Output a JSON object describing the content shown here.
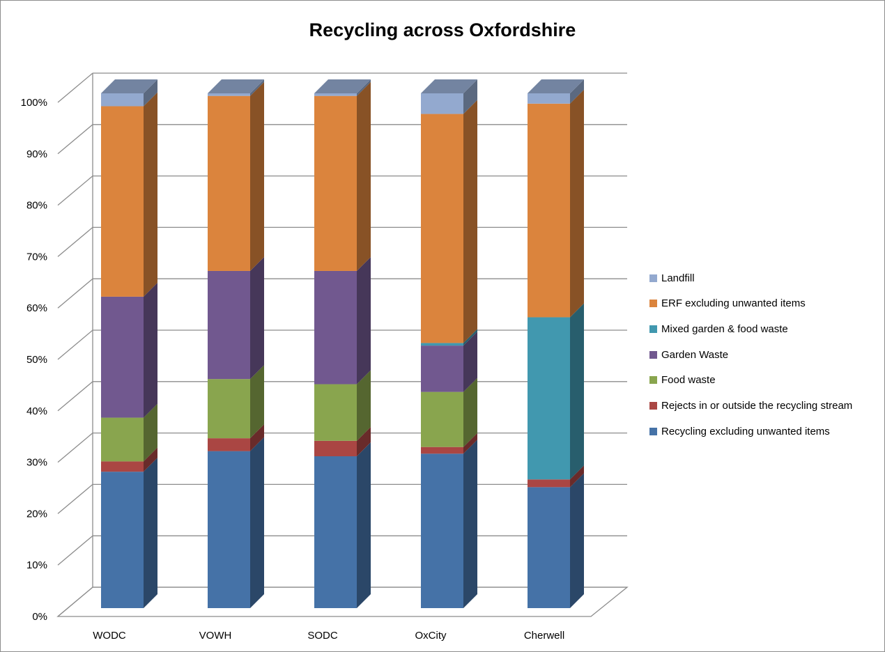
{
  "chart_data": {
    "type": "bar",
    "stacked": true,
    "percent": true,
    "three_d": true,
    "title": "Recycling across Oxfordshire",
    "xlabel": "",
    "ylabel": "",
    "ylim": [
      0,
      100
    ],
    "y_ticks": [
      "0%",
      "10%",
      "20%",
      "30%",
      "40%",
      "50%",
      "60%",
      "70%",
      "80%",
      "90%",
      "100%"
    ],
    "grid": true,
    "legend_position": "right",
    "categories": [
      "WODC",
      "VOWH",
      "SODC",
      "OxCity",
      "Cherwell"
    ],
    "series": [
      {
        "name": "Recycling excluding unwanted items",
        "color": "#4572A7",
        "values": [
          26.5,
          30.5,
          29.5,
          30.0,
          23.5
        ]
      },
      {
        "name": "Rejects in or outside the recycling stream",
        "color": "#AA4643",
        "values": [
          2.0,
          2.5,
          3.0,
          1.3,
          1.5
        ]
      },
      {
        "name": "Food waste",
        "color": "#89A54E",
        "values": [
          8.5,
          11.5,
          11.0,
          10.7,
          0
        ]
      },
      {
        "name": "Garden Waste",
        "color": "#71588F",
        "values": [
          23.5,
          21.0,
          22.0,
          9.0,
          0
        ]
      },
      {
        "name": "Mixed garden & food waste",
        "color": "#4198AF",
        "values": [
          0,
          0,
          0,
          0.5,
          31.5
        ]
      },
      {
        "name": "ERF excluding unwanted items",
        "color": "#DB843D",
        "values": [
          37.0,
          34.0,
          34.0,
          44.5,
          41.5
        ]
      },
      {
        "name": "Landfill",
        "color": "#93A9CF",
        "values": [
          2.5,
          0.5,
          0.5,
          4.0,
          2.0
        ]
      }
    ]
  }
}
